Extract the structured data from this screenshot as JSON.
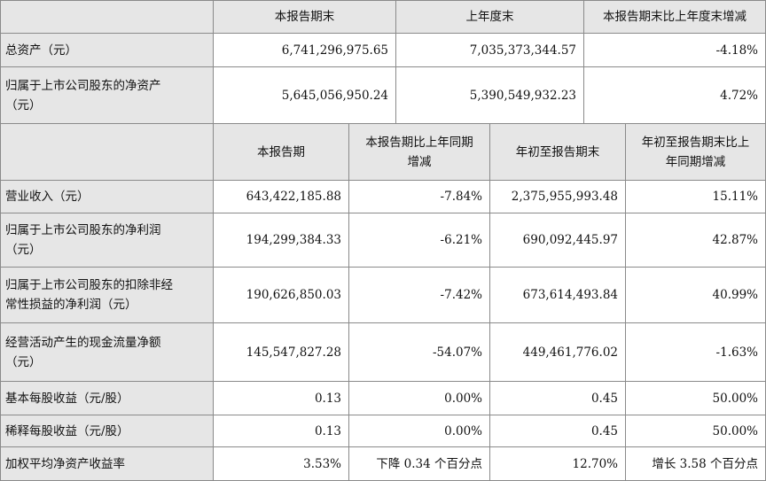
{
  "top_headers": [
    "本报告期末",
    "上年度末",
    "本报告期末比上年度末增减"
  ],
  "top_rows": [
    {
      "label_lines": [
        "总资产（元）"
      ],
      "values": [
        "6,741,296,975.65",
        "7,035,373,344.57",
        "-4.18%"
      ]
    },
    {
      "label_lines": [
        "归属于上市公司股东的净资产",
        "（元）"
      ],
      "values": [
        "5,645,056,950.24",
        "5,390,549,932.23",
        "4.72%"
      ]
    }
  ],
  "mid_headers": [
    {
      "lines": [
        "本报告期"
      ]
    },
    {
      "lines": [
        "本报告期比上年同期",
        "增减"
      ]
    },
    {
      "lines": [
        "年初至报告期末"
      ]
    },
    {
      "lines": [
        "年初至报告期末比上",
        "年同期增减"
      ]
    }
  ],
  "bottom_rows": [
    {
      "label_lines": [
        "营业收入（元）"
      ],
      "values": [
        "643,422,185.88",
        "-7.84%",
        "2,375,955,993.48",
        "15.11%"
      ]
    },
    {
      "label_lines": [
        "归属于上市公司股东的净利润",
        "（元）"
      ],
      "values": [
        "194,299,384.33",
        "-6.21%",
        "690,092,445.97",
        "42.87%"
      ]
    },
    {
      "label_lines": [
        "归属于上市公司股东的扣除非经",
        "常性损益的净利润（元）"
      ],
      "values": [
        "190,626,850.03",
        "-7.42%",
        "673,614,493.84",
        "40.99%"
      ]
    },
    {
      "label_lines": [
        "经营活动产生的现金流量净额",
        "（元）"
      ],
      "values": [
        "145,547,827.28",
        "-54.07%",
        "449,461,776.02",
        "-1.63%"
      ]
    },
    {
      "label_lines": [
        "基本每股收益（元/股）"
      ],
      "values": [
        "0.13",
        "0.00%",
        "0.45",
        "50.00%"
      ]
    },
    {
      "label_lines": [
        "稀释每股收益（元/股）"
      ],
      "values": [
        "0.13",
        "0.00%",
        "0.45",
        "50.00%"
      ]
    },
    {
      "label_lines": [
        "加权平均净资产收益率"
      ],
      "values": [
        "3.53%",
        "下降 0.34 个百分点",
        "12.70%",
        "增长 3.58 个百分点"
      ]
    }
  ]
}
